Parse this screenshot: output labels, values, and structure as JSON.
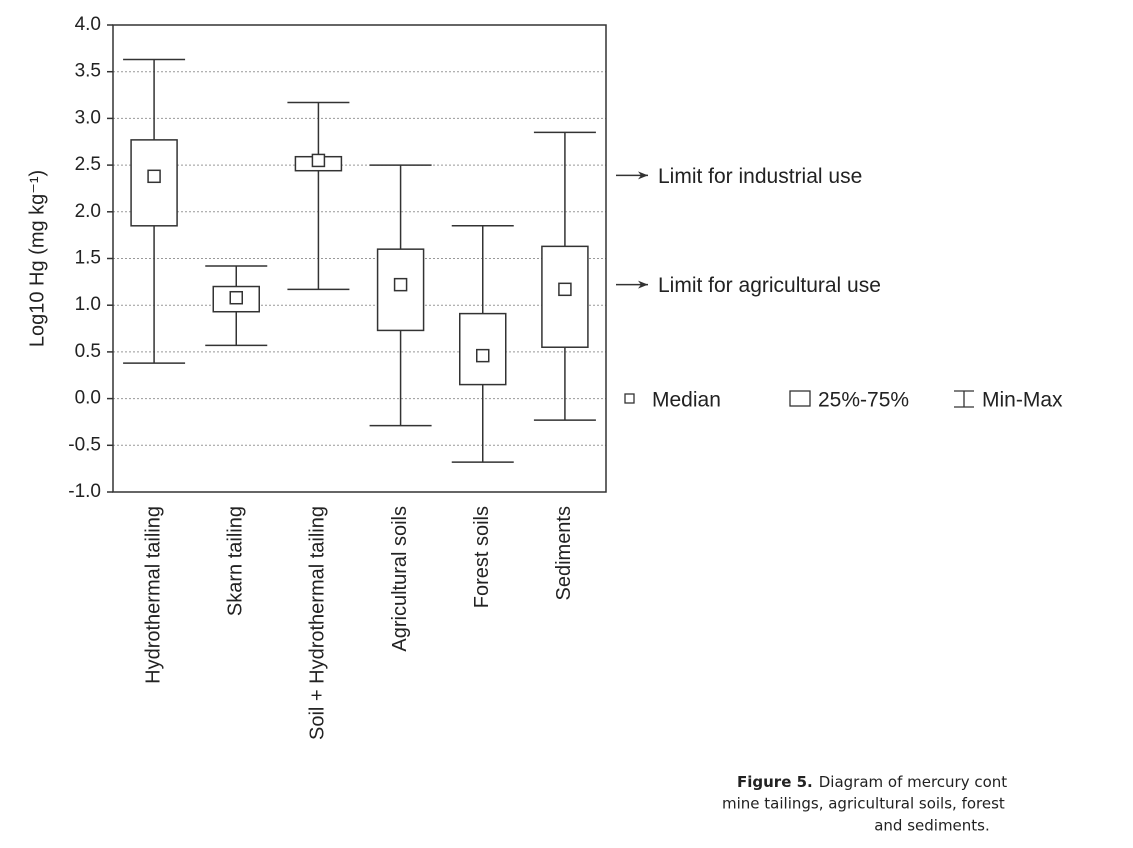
{
  "chart_data": {
    "type": "box",
    "y_label": "Log10 Hg (mg kg⁻¹)",
    "categories": [
      "Hydrothermal tailing",
      "Skarn tailing",
      "Soil + Hydrothermal tailing",
      "Agricultural soils",
      "Forest soils",
      "Sediments"
    ],
    "min": [
      0.38,
      0.57,
      1.17,
      -0.29,
      -0.68,
      -0.23
    ],
    "q1": [
      1.85,
      0.93,
      2.44,
      0.73,
      0.15,
      0.55
    ],
    "median": [
      2.38,
      1.08,
      2.55,
      1.22,
      0.46,
      1.17
    ],
    "q3": [
      2.77,
      1.2,
      2.59,
      1.6,
      0.91,
      1.63
    ],
    "max": [
      3.63,
      1.42,
      3.17,
      2.5,
      1.85,
      2.85
    ],
    "ylim": [
      -1.0,
      4.0
    ],
    "yticks": [
      {
        "value": 4.0,
        "label": "4.0"
      },
      {
        "value": 3.5,
        "label": "3.5"
      },
      {
        "value": 3.0,
        "label": "3.0"
      },
      {
        "value": 2.5,
        "label": "2.5"
      },
      {
        "value": 2.0,
        "label": "2.0"
      },
      {
        "value": 1.5,
        "label": "1.5"
      },
      {
        "value": 1.0,
        "label": "1.0"
      },
      {
        "value": 0.5,
        "label": "0.5"
      },
      {
        "value": 0.0,
        "label": "0.0"
      },
      {
        "value": -0.5,
        "label": "-0.5"
      },
      {
        "value": -1.0,
        "label": "-1.0"
      }
    ],
    "grid": true,
    "annotations": [
      {
        "text": "Limit for industrial use",
        "y": 2.39
      },
      {
        "text": "Limit for agricultural use",
        "y": 1.22
      }
    ],
    "legend": [
      "Median",
      "25%-75%",
      "Min-Max"
    ],
    "caption": {
      "label": "Figure 5.",
      "lines": [
        "Diagram of mercury cont",
        "mine tailings, agricultural soils, forest",
        "and sediments."
      ]
    }
  }
}
